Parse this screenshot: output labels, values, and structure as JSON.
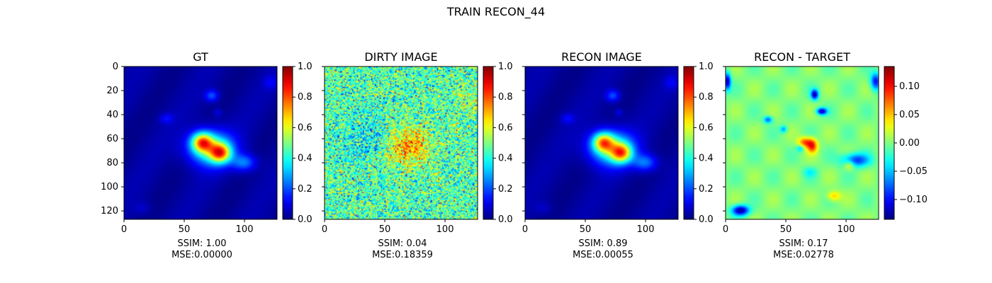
{
  "chart_data": [
    {
      "type": "heatmap",
      "title": "GT",
      "colormap": "jet",
      "xlim": [
        0,
        127
      ],
      "ylim": [
        127,
        0
      ],
      "xticks": [
        0,
        50,
        100
      ],
      "yticks": [
        0,
        20,
        40,
        60,
        80,
        100,
        120
      ],
      "colorbar": {
        "min": 0.0,
        "max": 1.0,
        "ticks": [
          0.0,
          0.2,
          0.4,
          0.6,
          0.8,
          1.0
        ],
        "tick_labels": [
          "0.0",
          "0.2",
          "0.4",
          "0.6",
          "0.8",
          "1.0"
        ]
      },
      "stats": [
        "SSIM: 1.00",
        "MSE:0.00000"
      ]
    },
    {
      "type": "heatmap",
      "title": "DIRTY IMAGE",
      "colormap": "jet",
      "xlim": [
        0,
        127
      ],
      "ylim": [
        127,
        0
      ],
      "xticks": [
        0,
        50,
        100
      ],
      "yticks": [
        0,
        20,
        40,
        60,
        80,
        100,
        120
      ],
      "colorbar": {
        "min": 0.0,
        "max": 1.0,
        "ticks": [
          0.0,
          0.2,
          0.4,
          0.6,
          0.8,
          1.0
        ],
        "tick_labels": [
          "0.0",
          "0.2",
          "0.4",
          "0.6",
          "0.8",
          "1.0"
        ]
      },
      "stats": [
        "SSIM: 0.04",
        "MSE:0.18359"
      ]
    },
    {
      "type": "heatmap",
      "title": "RECON IMAGE",
      "colormap": "jet",
      "xlim": [
        0,
        127
      ],
      "ylim": [
        127,
        0
      ],
      "xticks": [
        0,
        50,
        100
      ],
      "yticks": [
        0,
        20,
        40,
        60,
        80,
        100,
        120
      ],
      "colorbar": {
        "min": 0.0,
        "max": 1.0,
        "ticks": [
          0.0,
          0.2,
          0.4,
          0.6,
          0.8,
          1.0
        ],
        "tick_labels": [
          "0.0",
          "0.2",
          "0.4",
          "0.6",
          "0.8",
          "1.0"
        ]
      },
      "stats": [
        "SSIM: 0.89",
        "MSE:0.00055"
      ]
    },
    {
      "type": "heatmap",
      "title": "RECON - TARGET",
      "colormap": "jet",
      "xlim": [
        0,
        127
      ],
      "ylim": [
        127,
        0
      ],
      "xticks": [
        0,
        50,
        100
      ],
      "yticks": [
        0,
        20,
        40,
        60,
        80,
        100,
        120
      ],
      "colorbar": {
        "min": -0.135,
        "max": 0.135,
        "ticks": [
          -0.1,
          -0.05,
          0.0,
          0.05,
          0.1
        ],
        "tick_labels": [
          "−0.10",
          "−0.05",
          "0.00",
          "0.05",
          "0.10"
        ]
      },
      "stats": [
        "SSIM: 0.17",
        "MSE:0.02778"
      ]
    }
  ],
  "figure": {
    "suptitle": "TRAIN RECON_44"
  }
}
